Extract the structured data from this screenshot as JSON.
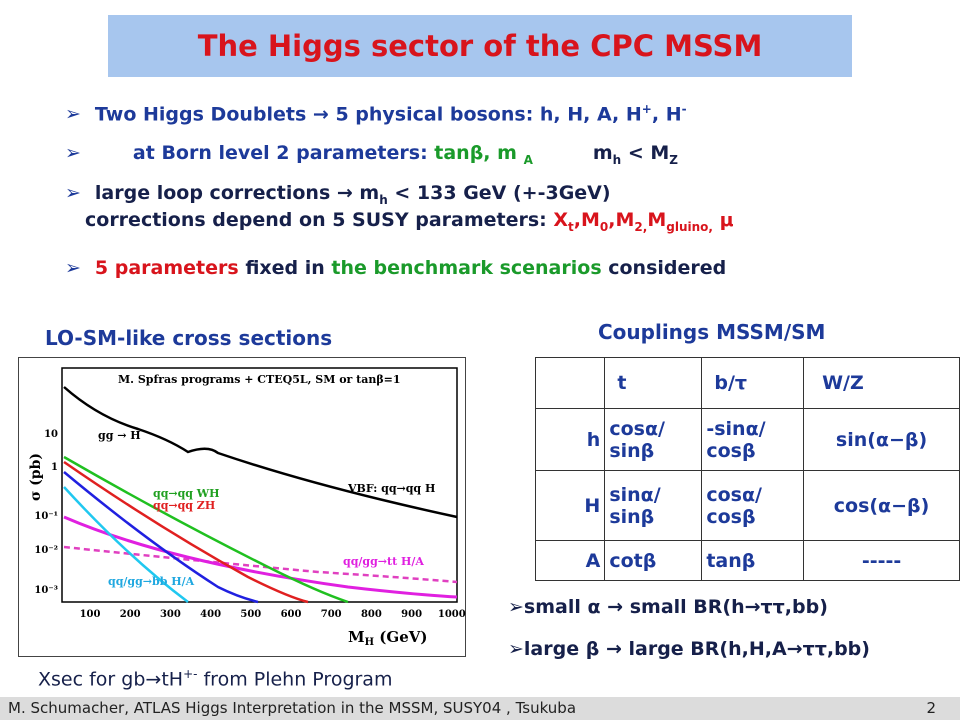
{
  "title": "The Higgs sector of the CPC MSSM",
  "bullets": [
    {
      "parts": [
        "Two Higgs Doublets ",
        "→",
        " 5 physical bosons:  h, H, A, H",
        "+",
        ", H",
        "-"
      ]
    },
    {
      "parts": [
        "at Born level  2 parameters: ",
        "tanβ, m ",
        "A",
        "m",
        "h",
        " < M",
        "Z"
      ]
    },
    {
      "parts": [
        "large loop corrections ",
        "→",
        " m",
        "h",
        " < 133 GeV (+-3GeV)"
      ],
      "line2": [
        "corrections depend on 5 SUSY parameters:  ",
        "X",
        "t",
        ",M",
        "0",
        ",M",
        "2,",
        "M",
        "gluino,",
        " μ"
      ]
    },
    {
      "parts": [
        "5 parameters",
        " fixed in ",
        "the benchmark scenarios",
        " considered"
      ]
    }
  ],
  "plot": {
    "heading": "LO-SM-like cross sections",
    "note": "M. Spfras programs + CTEQ5L, SM or tanβ=1",
    "ylabel": "σ (pb)",
    "xlabel": "M",
    "xlabel_sub": "H",
    "xlabel_unit": " (GeV)",
    "xticks": [
      "100",
      "200",
      "300",
      "400",
      "500",
      "600",
      "700",
      "800",
      "900",
      "1000"
    ],
    "yticks": [
      "10",
      "1",
      "10⁻¹",
      "10⁻²",
      "10⁻³"
    ],
    "curve_labels": [
      "gg → H",
      "VBF: qq→qq H",
      "qq→qq WH",
      "qq→qq ZH",
      "qq/gg→tt H/A",
      "qq/gg→bb H/A"
    ],
    "caption": [
      "Xsec for gb",
      "→",
      "tH",
      "+-",
      " from Plehn Program"
    ]
  },
  "table": {
    "heading": "Couplings MSSM/SM",
    "header": [
      "t",
      "b/τ",
      "W/Z"
    ],
    "rows": [
      {
        "label": "h",
        "cells": [
          [
            "cosα/",
            "sinβ"
          ],
          [
            "-sinα/",
            "cosβ"
          ],
          [
            "sin(α−β)"
          ]
        ]
      },
      {
        "label": "H",
        "cells": [
          [
            "sinα/",
            "sinβ"
          ],
          [
            "cosα/",
            "cosβ"
          ],
          [
            "cos(α−β)"
          ]
        ]
      },
      {
        "label": "A",
        "cells": [
          [
            "cotβ"
          ],
          [
            "tanβ"
          ],
          [
            "-----"
          ]
        ]
      }
    ]
  },
  "notes": [
    [
      "small  α ",
      "→",
      " small BR(h",
      "→",
      "ττ,bb)"
    ],
    [
      "large  β ",
      "→",
      "  large BR(h,H,A",
      "→",
      "ττ,bb)"
    ]
  ],
  "footer": {
    "text": "M. Schumacher,    ATLAS Higgs Interpretation in the  MSSM, SUSY04 , Tsukuba",
    "page": "2"
  }
}
